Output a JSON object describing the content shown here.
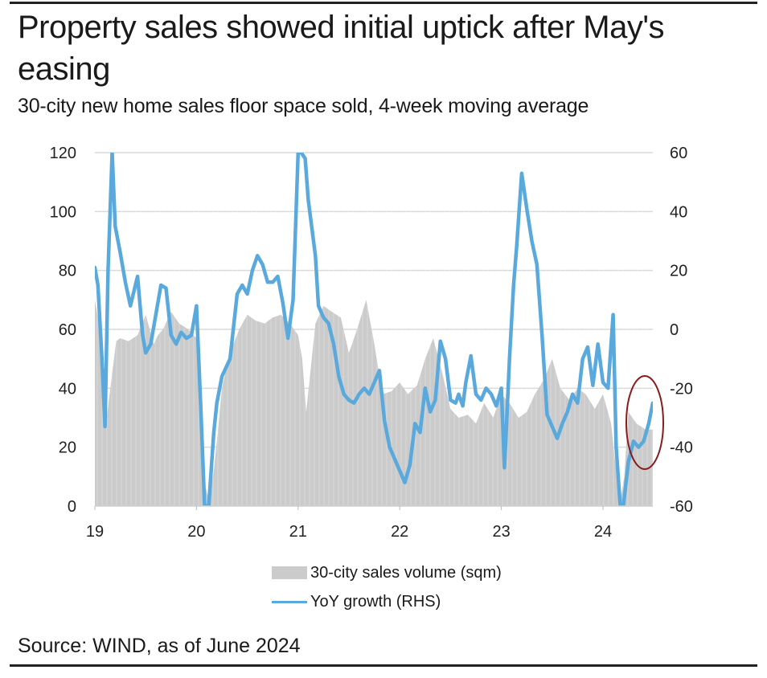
{
  "header": {
    "title": "Property sales showed initial uptick after May's easing",
    "subtitle": "30-city new home sales floor space sold, 4-week moving average"
  },
  "footer": {
    "source": "Source: WIND, as of June 2024"
  },
  "chart_data": {
    "type": "area+line",
    "title": "Property sales showed initial uptick after May's easing",
    "subtitle": "30-city new home sales floor space sold, 4-week moving average",
    "x_ticks": [
      "19",
      "20",
      "21",
      "22",
      "23",
      "24"
    ],
    "x_range": [
      2019.0,
      2024.49
    ],
    "y_left": {
      "ticks": [
        "0",
        "20",
        "40",
        "60",
        "80",
        "100",
        "120"
      ],
      "range": [
        0,
        120
      ]
    },
    "y_right": {
      "ticks": [
        "-60",
        "-40",
        "-20",
        "0",
        "20",
        "40",
        "60"
      ],
      "range": [
        -60,
        60
      ]
    },
    "grid": true,
    "legend_position": "bottom-center",
    "annotation": "red ellipse highlighting mid-2024 uptick",
    "series": [
      {
        "name": "30-city sales volume (sqm)",
        "axis": "left",
        "kind": "area",
        "color": "#cbcbcb",
        "x": [
          2019.0,
          2019.04,
          2019.08,
          2019.12,
          2019.17,
          2019.21,
          2019.25,
          2019.33,
          2019.42,
          2019.5,
          2019.58,
          2019.62,
          2019.67,
          2019.75,
          2019.83,
          2019.92,
          2020.0,
          2020.04,
          2020.08,
          2020.12,
          2020.17,
          2020.21,
          2020.25,
          2020.33,
          2020.42,
          2020.5,
          2020.58,
          2020.67,
          2020.75,
          2020.83,
          2020.92,
          2021.0,
          2021.04,
          2021.08,
          2021.17,
          2021.25,
          2021.33,
          2021.42,
          2021.5,
          2021.58,
          2021.67,
          2021.75,
          2021.83,
          2021.92,
          2022.0,
          2022.08,
          2022.17,
          2022.25,
          2022.33,
          2022.42,
          2022.5,
          2022.58,
          2022.67,
          2022.75,
          2022.83,
          2022.92,
          2023.0,
          2023.08,
          2023.17,
          2023.25,
          2023.33,
          2023.42,
          2023.5,
          2023.58,
          2023.67,
          2023.75,
          2023.83,
          2023.92,
          2024.0,
          2024.08,
          2024.12,
          2024.17,
          2024.21,
          2024.25,
          2024.33,
          2024.42,
          2024.49
        ],
        "values": [
          70,
          62,
          35,
          31,
          45,
          56,
          57,
          56,
          58,
          65,
          55,
          58,
          60,
          66,
          62,
          60,
          57,
          40,
          8,
          2,
          12,
          25,
          40,
          52,
          60,
          65,
          63,
          62,
          64,
          65,
          62,
          58,
          50,
          32,
          62,
          68,
          66,
          64,
          52,
          60,
          70,
          55,
          38,
          39,
          42,
          38,
          41,
          50,
          57,
          45,
          33,
          30,
          31,
          28,
          35,
          30,
          38,
          35,
          30,
          32,
          38,
          43,
          50,
          40,
          36,
          40,
          38,
          33,
          38,
          28,
          15,
          2,
          10,
          32,
          28,
          26,
          26
        ]
      },
      {
        "name": "YoY growth (RHS)",
        "axis": "right",
        "kind": "line",
        "color": "#5aa9dd",
        "x": [
          2019.0,
          2019.03,
          2019.07,
          2019.1,
          2019.13,
          2019.17,
          2019.2,
          2019.25,
          2019.3,
          2019.35,
          2019.42,
          2019.47,
          2019.5,
          2019.55,
          2019.6,
          2019.65,
          2019.7,
          2019.75,
          2019.8,
          2019.85,
          2019.9,
          2019.95,
          2020.0,
          2020.04,
          2020.08,
          2020.12,
          2020.17,
          2020.2,
          2020.25,
          2020.33,
          2020.4,
          2020.45,
          2020.5,
          2020.55,
          2020.6,
          2020.65,
          2020.7,
          2020.75,
          2020.8,
          2020.85,
          2020.9,
          2020.95,
          2021.0,
          2021.03,
          2021.07,
          2021.1,
          2021.17,
          2021.2,
          2021.25,
          2021.3,
          2021.35,
          2021.4,
          2021.45,
          2021.5,
          2021.55,
          2021.6,
          2021.65,
          2021.7,
          2021.75,
          2021.8,
          2021.85,
          2021.9,
          2021.95,
          2022.0,
          2022.05,
          2022.1,
          2022.15,
          2022.2,
          2022.25,
          2022.3,
          2022.35,
          2022.4,
          2022.45,
          2022.5,
          2022.55,
          2022.58,
          2022.62,
          2022.65,
          2022.7,
          2022.75,
          2022.8,
          2022.85,
          2022.9,
          2022.95,
          2023.0,
          2023.03,
          2023.05,
          2023.08,
          2023.12,
          2023.15,
          2023.2,
          2023.25,
          2023.3,
          2023.35,
          2023.4,
          2023.45,
          2023.5,
          2023.55,
          2023.6,
          2023.65,
          2023.7,
          2023.75,
          2023.8,
          2023.85,
          2023.9,
          2023.95,
          2024.0,
          2024.05,
          2024.1,
          2024.13,
          2024.17,
          2024.2,
          2024.25,
          2024.3,
          2024.35,
          2024.4,
          2024.45,
          2024.49
        ],
        "values": [
          21,
          15,
          -10,
          -33,
          20,
          60,
          35,
          26,
          16,
          8,
          18,
          -2,
          -8,
          -5,
          5,
          15,
          14,
          -2,
          -5,
          -1,
          -3,
          -2,
          8,
          -25,
          -60,
          -60,
          -35,
          -25,
          -16,
          -10,
          12,
          15,
          12,
          20,
          25,
          22,
          16,
          16,
          18,
          9,
          -3,
          10,
          60,
          60,
          58,
          44,
          25,
          8,
          4,
          2,
          -5,
          -16,
          -22,
          -24,
          -25,
          -22,
          -20,
          -22,
          -18,
          -14,
          -31,
          -40,
          -44,
          -48,
          -52,
          -46,
          -32,
          -35,
          -20,
          -28,
          -24,
          -4,
          -10,
          -24,
          -25,
          -22,
          -26,
          -18,
          -9,
          -22,
          -24,
          -20,
          -22,
          -26,
          -20,
          -47,
          -33,
          -10,
          15,
          28,
          53,
          41,
          30,
          22,
          -2,
          -29,
          -33,
          -37,
          -32,
          -28,
          -22,
          -25,
          -10,
          -6,
          -19,
          -5,
          -18,
          -20,
          5,
          -40,
          -60,
          -60,
          -45,
          -38,
          -40,
          -38,
          -32,
          -25
        ]
      }
    ]
  },
  "legend": {
    "items": [
      {
        "label": "30-city sales volume (sqm)"
      },
      {
        "label": "YoY growth (RHS)"
      }
    ]
  }
}
